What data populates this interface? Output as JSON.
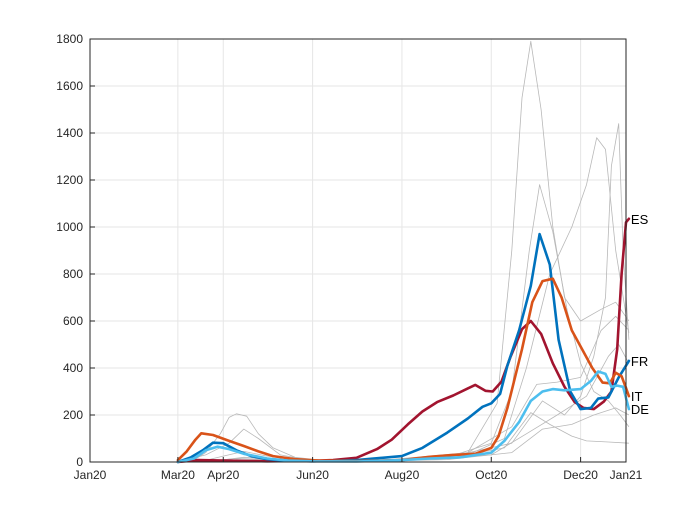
{
  "chart_data": {
    "type": "line",
    "title": "",
    "xlabel": "",
    "ylabel": "",
    "ylim": [
      0,
      1800
    ],
    "xlim": [
      "2020-01-01",
      "2021-01-01"
    ],
    "y_ticks": [
      0,
      200,
      400,
      600,
      800,
      1000,
      1200,
      1400,
      1600,
      1800
    ],
    "x_ticks": [
      {
        "date": "2020-01-01",
        "label": "Jan20"
      },
      {
        "date": "2020-03-01",
        "label": "Mar20"
      },
      {
        "date": "2020-04-01",
        "label": "Apr20"
      },
      {
        "date": "2020-06-01",
        "label": "Jun20"
      },
      {
        "date": "2020-08-01",
        "label": "Aug20"
      },
      {
        "date": "2020-10-01",
        "label": "Oct20"
      },
      {
        "date": "2020-12-01",
        "label": "Dec20"
      },
      {
        "date": "2021-01-01",
        "label": "Jan21"
      }
    ],
    "grid": true,
    "legend": "none (series labelled at line ends)",
    "series": [
      {
        "name": "ES",
        "color": "#a2142f",
        "points": [
          [
            "2020-03-01",
            0
          ],
          [
            "2020-03-15",
            8
          ],
          [
            "2020-04-01",
            6
          ],
          [
            "2020-05-01",
            3
          ],
          [
            "2020-06-01",
            5
          ],
          [
            "2020-06-15",
            8
          ],
          [
            "2020-07-01",
            18
          ],
          [
            "2020-07-15",
            55
          ],
          [
            "2020-07-25",
            95
          ],
          [
            "2020-08-05",
            160
          ],
          [
            "2020-08-15",
            215
          ],
          [
            "2020-08-25",
            255
          ],
          [
            "2020-09-05",
            283
          ],
          [
            "2020-09-15",
            313
          ],
          [
            "2020-09-20",
            328
          ],
          [
            "2020-09-27",
            303
          ],
          [
            "2020-10-02",
            300
          ],
          [
            "2020-10-08",
            342
          ],
          [
            "2020-10-14",
            445
          ],
          [
            "2020-10-22",
            565
          ],
          [
            "2020-10-28",
            600
          ],
          [
            "2020-11-04",
            545
          ],
          [
            "2020-11-12",
            420
          ],
          [
            "2020-11-20",
            320
          ],
          [
            "2020-11-27",
            255
          ],
          [
            "2020-12-03",
            230
          ],
          [
            "2020-12-10",
            225
          ],
          [
            "2020-12-17",
            258
          ],
          [
            "2020-12-22",
            300
          ],
          [
            "2020-12-26",
            480
          ],
          [
            "2020-12-29",
            800
          ],
          [
            "2021-01-01",
            1020
          ],
          [
            "2021-01-03",
            1035
          ]
        ]
      },
      {
        "name": "FR",
        "color": "#0072bd",
        "points": [
          [
            "2020-03-01",
            0
          ],
          [
            "2020-03-10",
            20
          ],
          [
            "2020-03-18",
            50
          ],
          [
            "2020-03-25",
            82
          ],
          [
            "2020-04-01",
            80
          ],
          [
            "2020-04-10",
            50
          ],
          [
            "2020-04-20",
            25
          ],
          [
            "2020-05-01",
            12
          ],
          [
            "2020-05-15",
            5
          ],
          [
            "2020-06-01",
            3
          ],
          [
            "2020-07-01",
            8
          ],
          [
            "2020-08-01",
            25
          ],
          [
            "2020-08-15",
            60
          ],
          [
            "2020-09-01",
            125
          ],
          [
            "2020-09-15",
            185
          ],
          [
            "2020-09-25",
            235
          ],
          [
            "2020-10-01",
            250
          ],
          [
            "2020-10-07",
            290
          ],
          [
            "2020-10-12",
            410
          ],
          [
            "2020-10-20",
            560
          ],
          [
            "2020-10-28",
            750
          ],
          [
            "2020-11-03",
            970
          ],
          [
            "2020-11-10",
            840
          ],
          [
            "2020-11-16",
            520
          ],
          [
            "2020-11-24",
            300
          ],
          [
            "2020-12-01",
            225
          ],
          [
            "2020-12-08",
            230
          ],
          [
            "2020-12-13",
            270
          ],
          [
            "2020-12-20",
            275
          ],
          [
            "2020-12-27",
            360
          ],
          [
            "2021-01-03",
            430
          ]
        ]
      },
      {
        "name": "IT",
        "color": "#d95319",
        "points": [
          [
            "2020-03-01",
            8
          ],
          [
            "2020-03-07",
            45
          ],
          [
            "2020-03-13",
            95
          ],
          [
            "2020-03-17",
            122
          ],
          [
            "2020-03-25",
            115
          ],
          [
            "2020-04-05",
            90
          ],
          [
            "2020-04-15",
            68
          ],
          [
            "2020-04-25",
            45
          ],
          [
            "2020-05-05",
            25
          ],
          [
            "2020-05-20",
            12
          ],
          [
            "2020-06-05",
            6
          ],
          [
            "2020-07-01",
            4
          ],
          [
            "2020-08-01",
            8
          ],
          [
            "2020-08-20",
            22
          ],
          [
            "2020-09-05",
            30
          ],
          [
            "2020-09-20",
            35
          ],
          [
            "2020-10-01",
            60
          ],
          [
            "2020-10-06",
            110
          ],
          [
            "2020-10-12",
            230
          ],
          [
            "2020-10-22",
            480
          ],
          [
            "2020-10-29",
            680
          ],
          [
            "2020-11-05",
            770
          ],
          [
            "2020-11-12",
            780
          ],
          [
            "2020-11-18",
            700
          ],
          [
            "2020-11-25",
            560
          ],
          [
            "2020-12-02",
            480
          ],
          [
            "2020-12-09",
            400
          ],
          [
            "2020-12-16",
            338
          ],
          [
            "2020-12-21",
            335
          ],
          [
            "2020-12-25",
            380
          ],
          [
            "2020-12-29",
            365
          ],
          [
            "2021-01-01",
            315
          ],
          [
            "2021-01-03",
            280
          ]
        ]
      },
      {
        "name": "DE",
        "color": "#4dbeee",
        "points": [
          [
            "2020-03-01",
            0
          ],
          [
            "2020-03-12",
            15
          ],
          [
            "2020-03-20",
            50
          ],
          [
            "2020-03-28",
            65
          ],
          [
            "2020-04-05",
            55
          ],
          [
            "2020-04-15",
            35
          ],
          [
            "2020-05-01",
            15
          ],
          [
            "2020-05-15",
            6
          ],
          [
            "2020-06-01",
            3
          ],
          [
            "2020-07-01",
            2
          ],
          [
            "2020-08-01",
            8
          ],
          [
            "2020-08-20",
            15
          ],
          [
            "2020-09-10",
            20
          ],
          [
            "2020-10-01",
            40
          ],
          [
            "2020-10-10",
            90
          ],
          [
            "2020-10-20",
            170
          ],
          [
            "2020-10-28",
            260
          ],
          [
            "2020-11-05",
            300
          ],
          [
            "2020-11-12",
            310
          ],
          [
            "2020-11-20",
            305
          ],
          [
            "2020-12-01",
            310
          ],
          [
            "2020-12-08",
            345
          ],
          [
            "2020-12-13",
            385
          ],
          [
            "2020-12-18",
            375
          ],
          [
            "2020-12-22",
            320
          ],
          [
            "2020-12-26",
            325
          ],
          [
            "2020-12-30",
            320
          ],
          [
            "2021-01-03",
            225
          ]
        ]
      }
    ],
    "background_series": [
      {
        "color": "#b8b8b8",
        "points": [
          [
            "2020-03-10",
            0
          ],
          [
            "2020-03-20",
            40
          ],
          [
            "2020-03-30",
            120
          ],
          [
            "2020-04-05",
            190
          ],
          [
            "2020-04-10",
            205
          ],
          [
            "2020-04-17",
            195
          ],
          [
            "2020-04-25",
            120
          ],
          [
            "2020-05-05",
            60
          ],
          [
            "2020-05-20",
            20
          ],
          [
            "2020-06-10",
            5
          ],
          [
            "2020-08-01",
            5
          ],
          [
            "2020-09-01",
            20
          ],
          [
            "2020-10-01",
            80
          ],
          [
            "2020-10-15",
            300
          ],
          [
            "2020-10-27",
            900
          ],
          [
            "2020-11-03",
            1180
          ],
          [
            "2020-11-12",
            980
          ],
          [
            "2020-11-22",
            640
          ],
          [
            "2020-12-01",
            420
          ],
          [
            "2020-12-10",
            300
          ],
          [
            "2020-12-20",
            260
          ],
          [
            "2020-12-28",
            200
          ],
          [
            "2021-01-03",
            150
          ]
        ]
      },
      {
        "color": "#b8b8b8",
        "points": [
          [
            "2020-03-01",
            0
          ],
          [
            "2020-03-20",
            30
          ],
          [
            "2020-04-05",
            80
          ],
          [
            "2020-04-15",
            140
          ],
          [
            "2020-04-25",
            100
          ],
          [
            "2020-05-10",
            30
          ],
          [
            "2020-06-01",
            5
          ],
          [
            "2020-08-01",
            10
          ],
          [
            "2020-09-15",
            40
          ],
          [
            "2020-10-05",
            250
          ],
          [
            "2020-10-15",
            900
          ],
          [
            "2020-10-22",
            1550
          ],
          [
            "2020-10-28",
            1790
          ],
          [
            "2020-11-04",
            1500
          ],
          [
            "2020-11-12",
            1000
          ],
          [
            "2020-11-20",
            700
          ],
          [
            "2020-12-01",
            600
          ],
          [
            "2020-12-15",
            650
          ],
          [
            "2020-12-25",
            680
          ],
          [
            "2021-01-03",
            600
          ]
        ]
      },
      {
        "color": "#b8b8b8",
        "points": [
          [
            "2020-03-15",
            0
          ],
          [
            "2020-04-01",
            25
          ],
          [
            "2020-04-15",
            45
          ],
          [
            "2020-05-01",
            25
          ],
          [
            "2020-06-01",
            5
          ],
          [
            "2020-08-01",
            10
          ],
          [
            "2020-09-15",
            30
          ],
          [
            "2020-10-10",
            100
          ],
          [
            "2020-10-25",
            400
          ],
          [
            "2020-11-10",
            800
          ],
          [
            "2020-11-25",
            1000
          ],
          [
            "2020-12-05",
            1180
          ],
          [
            "2020-12-12",
            1380
          ],
          [
            "2020-12-18",
            1330
          ],
          [
            "2020-12-25",
            900
          ],
          [
            "2021-01-03",
            550
          ]
        ]
      },
      {
        "color": "#b8b8b8",
        "points": [
          [
            "2020-03-15",
            0
          ],
          [
            "2020-04-10",
            15
          ],
          [
            "2020-05-10",
            10
          ],
          [
            "2020-07-01",
            5
          ],
          [
            "2020-09-01",
            20
          ],
          [
            "2020-10-15",
            80
          ],
          [
            "2020-11-05",
            260
          ],
          [
            "2020-11-20",
            200
          ],
          [
            "2020-12-01",
            280
          ],
          [
            "2020-12-10",
            450
          ],
          [
            "2020-12-18",
            700
          ],
          [
            "2020-12-22",
            1260
          ],
          [
            "2020-12-27",
            1440
          ],
          [
            "2020-12-30",
            900
          ],
          [
            "2021-01-03",
            520
          ]
        ]
      },
      {
        "color": "#b8b8b8",
        "points": [
          [
            "2020-03-20",
            0
          ],
          [
            "2020-04-15",
            20
          ],
          [
            "2020-05-15",
            10
          ],
          [
            "2020-07-15",
            5
          ],
          [
            "2020-09-15",
            40
          ],
          [
            "2020-10-15",
            150
          ],
          [
            "2020-11-01",
            330
          ],
          [
            "2020-11-15",
            340
          ],
          [
            "2020-12-01",
            360
          ],
          [
            "2020-12-15",
            560
          ],
          [
            "2020-12-25",
            620
          ],
          [
            "2021-01-03",
            560
          ]
        ]
      },
      {
        "color": "#b8b8b8",
        "points": [
          [
            "2020-03-20",
            0
          ],
          [
            "2020-04-10",
            10
          ],
          [
            "2020-06-01",
            3
          ],
          [
            "2020-08-15",
            10
          ],
          [
            "2020-10-01",
            30
          ],
          [
            "2020-10-25",
            120
          ],
          [
            "2020-11-15",
            200
          ],
          [
            "2020-12-05",
            280
          ],
          [
            "2020-12-20",
            450
          ],
          [
            "2020-12-27",
            500
          ],
          [
            "2021-01-03",
            420
          ]
        ]
      },
      {
        "color": "#b8b8b8",
        "points": [
          [
            "2020-03-25",
            0
          ],
          [
            "2020-05-01",
            8
          ],
          [
            "2020-07-01",
            3
          ],
          [
            "2020-09-01",
            15
          ],
          [
            "2020-10-10",
            60
          ],
          [
            "2020-10-28",
            210
          ],
          [
            "2020-11-10",
            160
          ],
          [
            "2020-11-25",
            110
          ],
          [
            "2020-12-05",
            90
          ],
          [
            "2020-12-20",
            85
          ],
          [
            "2021-01-03",
            80
          ]
        ]
      },
      {
        "color": "#b8b8b8",
        "points": [
          [
            "2020-03-25",
            0
          ],
          [
            "2020-05-01",
            5
          ],
          [
            "2020-07-01",
            2
          ],
          [
            "2020-09-01",
            10
          ],
          [
            "2020-10-15",
            40
          ],
          [
            "2020-11-05",
            140
          ],
          [
            "2020-11-25",
            160
          ],
          [
            "2020-12-10",
            200
          ],
          [
            "2020-12-25",
            230
          ],
          [
            "2021-01-03",
            200
          ]
        ]
      }
    ]
  }
}
